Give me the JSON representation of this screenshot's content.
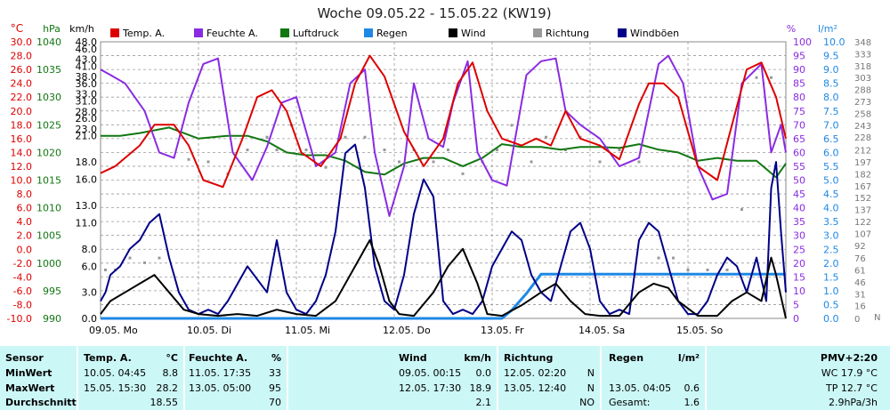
{
  "chart_data": {
    "type": "line",
    "title": "Woche 09.05.22 - 15.05.22 (KW19)",
    "x_days": [
      "09.05. Mo",
      "10.05. Di",
      "11.05. Mi",
      "12.05. Do",
      "13.05. Fr",
      "14.05. Sa",
      "15.05. So"
    ],
    "axes": {
      "temp": {
        "unit": "°C",
        "min": -10,
        "max": 30,
        "ticks": [
          "30.0",
          "28.0",
          "26.0",
          "24.0",
          "22.0",
          "20.0",
          "18.0",
          "16.0",
          "14.0",
          "12.0",
          "10.0",
          "8.0",
          "6.0",
          "4.0",
          "2.0",
          "0.0",
          "-2.0",
          "-4.0",
          "-6.0",
          "-8.0",
          "-10.0"
        ]
      },
      "pressure": {
        "unit": "hPa",
        "min": 990,
        "max": 1040,
        "ticks": [
          "1040",
          "1035",
          "1030",
          "1025",
          "1020",
          "1015",
          "1010",
          "1005",
          "1000",
          "995",
          "990"
        ]
      },
      "wind_kmh": {
        "unit": "km/h",
        "ticks": [
          "48.0",
          "46.0",
          "43.0",
          "41.0",
          "38.0",
          "36.0",
          "33.0",
          "31.0",
          "28.0",
          "26.0",
          "23.0",
          "21.0",
          "18.0",
          "16.0",
          "13.0",
          "11.0",
          "8.0",
          "6.0",
          "3.0",
          "0.0"
        ]
      },
      "humidity": {
        "unit": "%",
        "min": 0,
        "max": 100,
        "ticks": [
          "100",
          "95",
          "90",
          "85",
          "80",
          "75",
          "70",
          "65",
          "60",
          "55",
          "50",
          "45",
          "40",
          "35",
          "30",
          "25",
          "20",
          "15",
          "10",
          "5",
          "0"
        ]
      },
      "rain": {
        "unit": "l/m²",
        "min": 0,
        "max": 10,
        "ticks": [
          "10.0",
          "9.5",
          "9.0",
          "8.5",
          "8.0",
          "7.5",
          "7.0",
          "6.5",
          "6.0",
          "5.5",
          "5.0",
          "4.5",
          "4.0",
          "3.5",
          "3.0",
          "2.5",
          "2.0",
          "1.5",
          "1.0",
          "0.5",
          "0.0"
        ]
      },
      "direction": {
        "unit": "°",
        "ticks": [
          "348",
          "333",
          "318",
          "303",
          "288",
          "273",
          "258",
          "243",
          "228",
          "212",
          "197",
          "182",
          "167",
          "152",
          "137",
          "122",
          "107",
          "92",
          "76",
          "61",
          "46",
          "31",
          "16",
          "0"
        ],
        "min_tick": "N"
      }
    },
    "legend": [
      {
        "name": "Temp. A.",
        "color": "#dd0000"
      },
      {
        "name": "Feuchte A.",
        "color": "#8a2be2"
      },
      {
        "name": "Luftdruck",
        "color": "#117711"
      },
      {
        "name": "Regen",
        "color": "#1e88e5"
      },
      {
        "name": "Wind",
        "color": "#000000"
      },
      {
        "name": "Richtung",
        "color": "#999999"
      },
      {
        "name": "Windböen",
        "color": "#000088"
      }
    ],
    "series": [
      {
        "name": "Temp. A.",
        "axis": "temp",
        "color": "#dd0000",
        "t": [
          0,
          0.15,
          0.4,
          0.55,
          0.75,
          0.9,
          1.05,
          1.25,
          1.45,
          1.6,
          1.75,
          1.9,
          2.05,
          2.25,
          2.45,
          2.6,
          2.75,
          2.9,
          3.1,
          3.3,
          3.5,
          3.65,
          3.8,
          3.95,
          4.1,
          4.3,
          4.45,
          4.6,
          4.75,
          4.9,
          5.1,
          5.3,
          5.5,
          5.6,
          5.75,
          5.9,
          6.1,
          6.3,
          6.45,
          6.6,
          6.75,
          6.9,
          7.0
        ],
        "v": [
          11,
          12,
          15,
          18,
          18,
          15,
          10,
          9,
          16,
          22,
          23,
          20,
          14,
          12,
          16,
          24,
          28,
          25,
          17,
          12,
          16,
          24,
          27,
          20,
          16,
          15,
          16,
          15,
          20,
          16,
          15,
          13,
          21,
          24,
          24,
          22,
          12,
          10,
          18,
          26,
          27,
          22,
          16
        ]
      },
      {
        "name": "Feuchte A.",
        "axis": "humidity",
        "color": "#8a2be2",
        "t": [
          0,
          0.1,
          0.25,
          0.45,
          0.6,
          0.75,
          0.9,
          1.05,
          1.2,
          1.35,
          1.55,
          1.7,
          1.85,
          2.0,
          2.2,
          2.4,
          2.55,
          2.7,
          2.8,
          2.95,
          3.1,
          3.2,
          3.35,
          3.5,
          3.6,
          3.75,
          3.85,
          4.0,
          4.15,
          4.35,
          4.5,
          4.65,
          4.75,
          4.9,
          5.1,
          5.3,
          5.5,
          5.7,
          5.8,
          5.95,
          6.1,
          6.25,
          6.4,
          6.55,
          6.75,
          6.85,
          6.95,
          7.0
        ],
        "v": [
          90,
          88,
          85,
          75,
          60,
          58,
          78,
          92,
          94,
          60,
          50,
          62,
          78,
          80,
          55,
          60,
          85,
          90,
          60,
          37,
          55,
          85,
          65,
          62,
          78,
          93,
          60,
          50,
          48,
          88,
          93,
          94,
          75,
          70,
          65,
          55,
          58,
          92,
          95,
          85,
          55,
          43,
          45,
          85,
          92,
          60,
          70,
          60
        ]
      },
      {
        "name": "Luftdruck",
        "axis": "pressure",
        "color": "#117711",
        "t": [
          0,
          0.2,
          0.4,
          0.7,
          1.0,
          1.3,
          1.5,
          1.7,
          1.9,
          2.1,
          2.3,
          2.5,
          2.7,
          2.9,
          3.1,
          3.3,
          3.5,
          3.7,
          3.9,
          4.1,
          4.3,
          4.5,
          4.7,
          4.9,
          5.1,
          5.3,
          5.5,
          5.7,
          5.9,
          6.1,
          6.3,
          6.5,
          6.7,
          6.9,
          7.0
        ],
        "v": [
          1023,
          1023,
          1023.5,
          1024.5,
          1022.5,
          1023,
          1023,
          1022,
          1020,
          1019.5,
          1019.5,
          1018.5,
          1016.5,
          1016,
          1018,
          1019,
          1019,
          1017.5,
          1019,
          1021.5,
          1021,
          1021,
          1020.5,
          1021,
          1021,
          1020.8,
          1021.5,
          1020.5,
          1020,
          1018.5,
          1019,
          1018.5,
          1018.5,
          1015.5,
          1018
        ]
      },
      {
        "name": "Wind",
        "axis": "wind_kmh",
        "color": "#000000",
        "t": [
          0,
          0.1,
          0.25,
          0.4,
          0.55,
          0.7,
          0.85,
          1.0,
          1.2,
          1.4,
          1.6,
          1.8,
          2.0,
          2.2,
          2.4,
          2.6,
          2.75,
          2.85,
          2.95,
          3.05,
          3.2,
          3.4,
          3.55,
          3.7,
          3.85,
          3.95,
          4.1,
          4.3,
          4.5,
          4.65,
          4.8,
          4.95,
          5.1,
          5.3,
          5.5,
          5.65,
          5.8,
          5.9,
          6.1,
          6.3,
          6.45,
          6.6,
          6.75,
          6.85,
          6.9,
          7.0
        ],
        "v": [
          0.5,
          2,
          3,
          4,
          5,
          3,
          1,
          0.5,
          0.3,
          0.5,
          0.3,
          1,
          0.5,
          0.3,
          2,
          6,
          9,
          6,
          2,
          0.5,
          0.3,
          3,
          6,
          8,
          4,
          0.5,
          0.3,
          1.5,
          3,
          4,
          2,
          0.5,
          0.3,
          0.3,
          3,
          4,
          3.5,
          2,
          0.3,
          0.3,
          2,
          3,
          2,
          7,
          5,
          0
        ]
      },
      {
        "name": "Windböen",
        "axis": "wind_kmh",
        "color": "#000088",
        "t": [
          0,
          0.05,
          0.1,
          0.2,
          0.3,
          0.4,
          0.5,
          0.6,
          0.7,
          0.8,
          0.9,
          1.0,
          1.1,
          1.2,
          1.3,
          1.5,
          1.7,
          1.8,
          1.9,
          2.0,
          2.1,
          2.2,
          2.3,
          2.4,
          2.5,
          2.6,
          2.7,
          2.8,
          2.9,
          3.0,
          3.1,
          3.2,
          3.3,
          3.4,
          3.5,
          3.6,
          3.7,
          3.8,
          3.9,
          4.0,
          4.1,
          4.2,
          4.3,
          4.4,
          4.5,
          4.6,
          4.7,
          4.8,
          4.9,
          5.0,
          5.1,
          5.2,
          5.3,
          5.4,
          5.5,
          5.6,
          5.7,
          5.8,
          5.9,
          6.0,
          6.1,
          6.2,
          6.3,
          6.4,
          6.5,
          6.6,
          6.7,
          6.8,
          6.85,
          6.9,
          6.95,
          7.0
        ],
        "v": [
          2,
          3,
          5,
          6,
          8,
          9,
          11,
          12,
          7,
          3,
          1,
          0.5,
          1,
          0.5,
          2,
          6,
          3,
          9,
          3,
          1,
          0.5,
          2,
          5,
          10,
          19,
          20,
          15,
          6,
          2,
          1,
          5,
          12,
          16,
          14,
          2,
          0.5,
          1,
          0.5,
          2,
          6,
          8,
          10,
          9,
          5,
          3,
          2,
          6,
          10,
          11,
          8,
          2,
          0.5,
          1,
          0.5,
          9,
          11,
          10,
          6,
          2,
          0.5,
          0.5,
          2,
          5,
          7,
          6,
          3,
          7,
          2,
          15,
          18,
          10,
          3
        ]
      },
      {
        "name": "Regen",
        "axis": "rain",
        "color": "#1e88e5",
        "t": [
          0,
          4.1,
          4.2,
          4.35,
          4.5,
          5.0,
          6.0,
          7.0
        ],
        "v": [
          0,
          0,
          0.3,
          0.9,
          1.6,
          1.6,
          1.6,
          1.6
        ]
      },
      {
        "name": "Richtung",
        "axis": "direction",
        "color": "#999999",
        "t": [
          0.05,
          0.15,
          0.3,
          0.45,
          0.6,
          0.9,
          1.1,
          1.3,
          1.5,
          1.7,
          1.8,
          1.95,
          2.1,
          2.3,
          2.5,
          2.7,
          2.9,
          3.05,
          3.2,
          3.4,
          3.55,
          3.7,
          3.9,
          4.05,
          4.2,
          4.4,
          4.55,
          4.75,
          4.9,
          5.1,
          5.3,
          5.5,
          5.7,
          5.85,
          6.0,
          6.2,
          6.4,
          6.55,
          6.7,
          6.85
        ],
        "v": [
          61,
          61,
          76,
          70,
          76,
          200,
          197,
          182,
          212,
          228,
          212,
          243,
          212,
          190,
          228,
          228,
          212,
          197,
          212,
          197,
          212,
          182,
          197,
          212,
          243,
          197,
          228,
          212,
          228,
          197,
          212,
          197,
          76,
          76,
          61,
          61,
          61,
          137,
          303,
          303
        ]
      }
    ]
  },
  "table": {
    "header": {
      "sensor": "Sensor",
      "temp": "Temp. A.",
      "temp_unit": "°C",
      "hum": "Feuchte A.",
      "hum_unit": "%",
      "wind": "Wind",
      "wind_unit": "km/h",
      "dir": "Richtung",
      "rain": "Regen",
      "rain_unit": "l/m²",
      "pmv": "PMV+2:20"
    },
    "min": {
      "label": "MinWert",
      "temp_time": "10.05. 04:45",
      "temp_val": "8.8",
      "hum_time": "11.05. 17:35",
      "hum_val": "33",
      "wind_time": "09.05. 00:15",
      "wind_val": "0.0",
      "dir_time": "12.05. 02:20",
      "dir_val": "N",
      "pmv_extra": "WC 17.9 °C"
    },
    "max": {
      "label": "MaxWert",
      "temp_time": "15.05. 15:30",
      "temp_val": "28.2",
      "hum_time": "13.05. 05:00",
      "hum_val": "95",
      "wind_time": "12.05. 17:30",
      "wind_val": "18.9",
      "dir_time": "13.05. 12:40",
      "dir_val": "N",
      "rain_time": "13.05. 04:05",
      "rain_val": "0.6",
      "pmv_extra": "TP 12.7 °C"
    },
    "avg": {
      "label": "Durchschnitt",
      "temp_val": "18.55",
      "hum_val": "70",
      "wind_val": "2.1",
      "dir_val": "NO",
      "rain_label": "Gesamt:",
      "rain_val": "1.6",
      "pmv_extra": "2.9hPa/3h"
    }
  }
}
